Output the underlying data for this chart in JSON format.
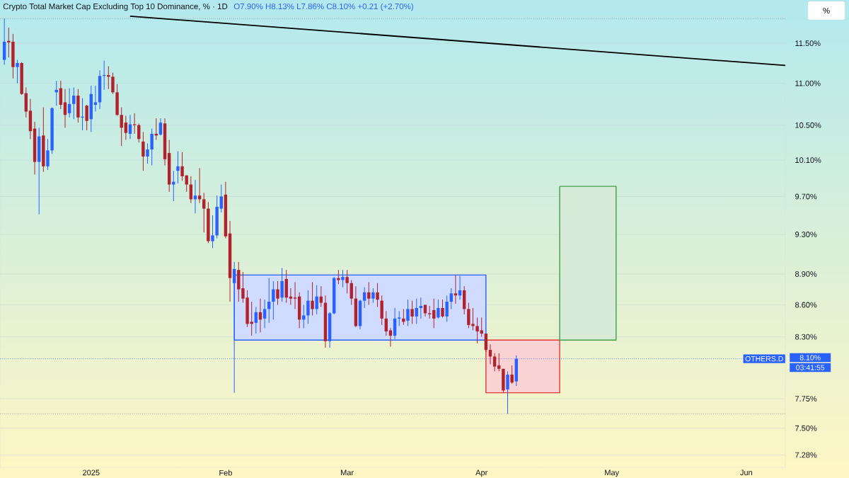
{
  "chart_data": {
    "type": "candlestick",
    "title": "Crypto Total Market Cap Excluding Top 10 Dominance, % · 1D",
    "subtitle": "O7.90% H8.13% L7.86% C8.10% +0.21 (+2.70%)",
    "ylabel": "%",
    "annotations": [
      "8.10%",
      "03:41:55"
    ],
    "x": [
      "2024-12-12",
      "2024-12-13",
      "2024-12-14",
      "2024-12-15",
      "2024-12-16",
      "2024-12-17",
      "2024-12-18",
      "2024-12-19",
      "2024-12-20",
      "2024-12-21",
      "2024-12-22",
      "2024-12-23",
      "2024-12-24",
      "2024-12-25",
      "2024-12-26",
      "2024-12-27",
      "2024-12-28",
      "2024-12-29",
      "2024-12-30",
      "2024-12-31",
      "2025-01-01",
      "2025-01-02",
      "2025-01-03",
      "2025-01-04",
      "2025-01-05",
      "2025-01-06",
      "2025-01-07",
      "2025-01-08",
      "2025-01-09",
      "2025-01-10",
      "2025-01-11",
      "2025-01-12",
      "2025-01-13",
      "2025-01-14",
      "2025-01-15",
      "2025-01-16",
      "2025-01-17",
      "2025-01-18",
      "2025-01-19",
      "2025-01-20",
      "2025-01-21",
      "2025-01-22",
      "2025-01-23",
      "2025-01-24",
      "2025-01-25",
      "2025-01-26",
      "2025-01-27",
      "2025-01-28",
      "2025-01-29",
      "2025-01-30",
      "2025-01-31",
      "2025-02-01",
      "2025-02-02",
      "2025-02-03",
      "2025-02-04",
      "2025-02-05",
      "2025-02-06",
      "2025-02-07",
      "2025-02-08",
      "2025-02-09",
      "2025-02-10",
      "2025-02-11",
      "2025-02-12",
      "2025-02-13",
      "2025-02-14",
      "2025-02-15",
      "2025-02-16",
      "2025-02-17",
      "2025-02-18",
      "2025-02-19",
      "2025-02-20",
      "2025-02-21",
      "2025-02-22",
      "2025-02-23",
      "2025-02-24",
      "2025-02-25",
      "2025-02-26",
      "2025-02-27",
      "2025-02-28",
      "2025-03-01",
      "2025-03-02",
      "2025-03-03",
      "2025-03-04",
      "2025-03-05",
      "2025-03-06",
      "2025-03-07",
      "2025-03-08",
      "2025-03-09",
      "2025-03-10",
      "2025-03-11",
      "2025-03-12",
      "2025-03-13",
      "2025-03-14",
      "2025-03-15",
      "2025-03-16",
      "2025-03-17",
      "2025-03-18",
      "2025-03-19",
      "2025-03-20",
      "2025-03-21",
      "2025-03-22",
      "2025-03-23",
      "2025-03-24",
      "2025-03-25",
      "2025-03-26",
      "2025-03-27",
      "2025-03-28",
      "2025-03-29",
      "2025-03-30",
      "2025-03-31",
      "2025-04-01",
      "2025-04-02",
      "2025-04-03",
      "2025-04-04",
      "2025-04-05",
      "2025-04-06",
      "2025-04-07",
      "2025-04-08",
      "2025-04-09"
    ],
    "ohlc": [
      [
        11.29,
        11.82,
        11.23,
        11.52
      ],
      [
        11.53,
        11.7,
        11.32,
        11.51
      ],
      [
        11.52,
        11.62,
        11.06,
        11.2
      ],
      [
        11.2,
        11.29,
        11.0,
        11.25
      ],
      [
        11.25,
        11.26,
        10.86,
        10.87
      ],
      [
        10.88,
        10.95,
        10.59,
        10.66
      ],
      [
        10.67,
        10.81,
        10.34,
        10.43
      ],
      [
        10.46,
        10.54,
        9.94,
        10.08
      ],
      [
        10.08,
        10.47,
        9.51,
        10.37
      ],
      [
        10.38,
        10.71,
        9.97,
        10.03
      ],
      [
        10.03,
        10.34,
        9.99,
        10.21
      ],
      [
        10.21,
        10.71,
        10.17,
        10.7
      ],
      [
        10.89,
        11.03,
        10.73,
        10.92
      ],
      [
        10.94,
        11.03,
        10.69,
        10.74
      ],
      [
        10.77,
        10.93,
        10.47,
        10.62
      ],
      [
        10.64,
        10.94,
        10.59,
        10.75
      ],
      [
        10.75,
        10.95,
        10.57,
        10.85
      ],
      [
        10.85,
        10.93,
        10.53,
        10.59
      ],
      [
        10.59,
        10.82,
        10.44,
        10.6
      ],
      [
        10.73,
        10.74,
        10.44,
        10.55
      ],
      [
        10.57,
        10.97,
        10.42,
        10.87
      ],
      [
        10.74,
        10.97,
        10.66,
        10.77
      ],
      [
        10.77,
        11.16,
        10.69,
        11.09
      ],
      [
        11.09,
        11.28,
        10.92,
        11.1
      ],
      [
        11.1,
        11.21,
        10.93,
        11.08
      ],
      [
        11.08,
        11.13,
        10.87,
        10.89
      ],
      [
        10.89,
        10.99,
        10.61,
        10.62
      ],
      [
        10.62,
        10.71,
        10.26,
        10.47
      ],
      [
        10.53,
        10.61,
        10.33,
        10.41
      ],
      [
        10.4,
        10.62,
        10.34,
        10.51
      ],
      [
        10.51,
        10.64,
        10.4,
        10.5
      ],
      [
        10.5,
        10.52,
        10.3,
        10.34
      ],
      [
        10.31,
        10.42,
        9.98,
        10.14
      ],
      [
        10.14,
        10.29,
        10.06,
        10.22
      ],
      [
        10.22,
        10.46,
        10.04,
        10.4
      ],
      [
        10.4,
        10.58,
        10.33,
        10.38
      ],
      [
        10.39,
        10.58,
        10.38,
        10.53
      ],
      [
        10.52,
        10.58,
        10.04,
        10.11
      ],
      [
        10.18,
        10.33,
        9.75,
        9.83
      ],
      [
        9.83,
        9.98,
        9.65,
        9.86
      ],
      [
        9.98,
        10.2,
        9.84,
        10.03
      ],
      [
        10.03,
        10.19,
        9.87,
        9.92
      ],
      [
        9.93,
        9.93,
        9.75,
        9.83
      ],
      [
        9.83,
        9.92,
        9.63,
        9.67
      ],
      [
        9.67,
        9.88,
        9.52,
        9.71
      ],
      [
        9.71,
        10.01,
        9.63,
        9.67
      ],
      [
        9.67,
        9.74,
        9.32,
        9.57
      ],
      [
        9.57,
        9.64,
        9.21,
        9.23
      ],
      [
        9.23,
        9.5,
        9.16,
        9.29
      ],
      [
        9.29,
        9.71,
        9.26,
        9.59
      ],
      [
        9.57,
        9.83,
        9.53,
        9.7
      ],
      [
        9.72,
        9.86,
        9.26,
        9.28
      ],
      [
        9.31,
        9.44,
        8.63,
        8.86
      ],
      [
        8.81,
        9.02,
        7.8,
        8.95
      ],
      [
        8.94,
        9.02,
        8.63,
        8.75
      ],
      [
        8.76,
        8.92,
        8.62,
        8.66
      ],
      [
        8.67,
        8.74,
        8.39,
        8.42
      ],
      [
        8.44,
        8.63,
        8.31,
        8.42
      ],
      [
        8.43,
        8.58,
        8.33,
        8.53
      ],
      [
        8.53,
        8.66,
        8.34,
        8.46
      ],
      [
        8.47,
        8.65,
        8.38,
        8.56
      ],
      [
        8.56,
        8.86,
        8.43,
        8.63
      ],
      [
        8.63,
        8.83,
        8.46,
        8.75
      ],
      [
        8.75,
        8.83,
        8.6,
        8.66
      ],
      [
        8.67,
        8.96,
        8.63,
        8.83
      ],
      [
        8.85,
        8.94,
        8.62,
        8.67
      ],
      [
        8.68,
        8.76,
        8.6,
        8.66
      ],
      [
        8.67,
        8.82,
        8.56,
        8.66
      ],
      [
        8.68,
        8.72,
        8.38,
        8.46
      ],
      [
        8.46,
        8.6,
        8.38,
        8.5
      ],
      [
        8.5,
        8.74,
        8.42,
        8.64
      ],
      [
        8.64,
        8.82,
        8.5,
        8.56
      ],
      [
        8.56,
        8.79,
        8.51,
        8.68
      ],
      [
        8.68,
        8.78,
        8.58,
        8.62
      ],
      [
        8.62,
        8.69,
        8.2,
        8.26
      ],
      [
        8.26,
        8.53,
        8.2,
        8.52
      ],
      [
        8.52,
        8.87,
        8.51,
        8.86
      ],
      [
        8.86,
        8.94,
        8.8,
        8.84
      ],
      [
        8.84,
        8.94,
        8.77,
        8.87
      ],
      [
        8.87,
        8.94,
        8.71,
        8.81
      ],
      [
        8.81,
        8.84,
        8.6,
        8.66
      ],
      [
        8.66,
        8.78,
        8.39,
        8.4
      ],
      [
        8.4,
        8.65,
        8.37,
        8.64
      ],
      [
        8.64,
        8.77,
        8.57,
        8.72
      ],
      [
        8.72,
        8.82,
        8.6,
        8.66
      ],
      [
        8.66,
        8.76,
        8.62,
        8.72
      ],
      [
        8.72,
        8.81,
        8.58,
        8.65
      ],
      [
        8.64,
        8.69,
        8.41,
        8.47
      ],
      [
        8.47,
        8.54,
        8.31,
        8.35
      ],
      [
        8.36,
        8.38,
        8.21,
        8.31
      ],
      [
        8.31,
        8.57,
        8.28,
        8.47
      ],
      [
        8.47,
        8.54,
        8.4,
        8.48
      ],
      [
        8.47,
        8.56,
        8.41,
        8.44
      ],
      [
        8.45,
        8.65,
        8.4,
        8.56
      ],
      [
        8.56,
        8.64,
        8.42,
        8.49
      ],
      [
        8.49,
        8.66,
        8.42,
        8.57
      ],
      [
        8.57,
        8.67,
        8.47,
        8.59
      ],
      [
        8.6,
        8.6,
        8.49,
        8.52
      ],
      [
        8.52,
        8.59,
        8.47,
        8.51
      ],
      [
        8.55,
        8.66,
        8.38,
        8.47
      ],
      [
        8.48,
        8.65,
        8.47,
        8.57
      ],
      [
        8.57,
        8.65,
        8.48,
        8.49
      ],
      [
        8.49,
        8.69,
        8.44,
        8.63
      ],
      [
        8.63,
        8.76,
        8.56,
        8.71
      ],
      [
        8.71,
        8.89,
        8.61,
        8.69
      ],
      [
        8.69,
        8.88,
        8.65,
        8.74
      ],
      [
        8.74,
        8.78,
        8.51,
        8.56
      ],
      [
        8.56,
        8.62,
        8.38,
        8.41
      ],
      [
        8.42,
        8.57,
        8.36,
        8.4
      ],
      [
        8.4,
        8.48,
        8.24,
        8.35
      ],
      [
        8.36,
        8.48,
        8.3,
        8.33
      ],
      [
        8.33,
        8.33,
        8.16,
        8.18
      ],
      [
        8.18,
        8.23,
        8.05,
        8.12
      ],
      [
        8.12,
        8.15,
        7.99,
        8.03
      ],
      [
        8.04,
        8.15,
        7.99,
        8.01
      ],
      [
        8.01,
        8.01,
        7.8,
        7.82
      ],
      [
        7.83,
        7.99,
        7.62,
        7.96
      ],
      [
        7.96,
        8.04,
        7.88,
        7.89
      ],
      [
        7.9,
        8.13,
        7.86,
        8.1
      ]
    ],
    "colors": [
      "#2962ff",
      "#b2222c",
      "#b2222c",
      "#2962ff",
      "#b2222c",
      "#b2222c",
      "#b2222c",
      "#b2222c",
      "#2962ff",
      "#b2222c",
      "#2962ff",
      "#2962ff",
      "#2962ff",
      "#b2222c",
      "#b2222c",
      "#2962ff",
      "#2962ff",
      "#b2222c",
      "#2962ff",
      "#b2222c",
      "#2962ff",
      "#2962ff",
      "#2962ff",
      "#2962ff",
      "#b2222c",
      "#b2222c",
      "#b2222c",
      "#b2222c",
      "#b2222c",
      "#2962ff",
      "#b2222c",
      "#b2222c",
      "#b2222c",
      "#2962ff",
      "#2962ff",
      "#b2222c",
      "#2962ff",
      "#b2222c",
      "#b2222c",
      "#2962ff",
      "#2962ff",
      "#b2222c",
      "#b2222c",
      "#b2222c",
      "#2962ff",
      "#b2222c",
      "#b2222c",
      "#b2222c",
      "#2962ff",
      "#2962ff",
      "#2962ff",
      "#b2222c",
      "#b2222c",
      "#2962ff",
      "#b2222c",
      "#b2222c",
      "#b2222c",
      "#b2222c",
      "#2962ff",
      "#b2222c",
      "#2962ff",
      "#2962ff",
      "#2962ff",
      "#b2222c",
      "#2962ff",
      "#b2222c",
      "#b2222c",
      "#b2222c",
      "#b2222c",
      "#2962ff",
      "#2962ff",
      "#b2222c",
      "#2962ff",
      "#b2222c",
      "#b2222c",
      "#2962ff",
      "#2962ff",
      "#b2222c",
      "#2962ff",
      "#b2222c",
      "#b2222c",
      "#b2222c",
      "#2962ff",
      "#2962ff",
      "#b2222c",
      "#2962ff",
      "#b2222c",
      "#b2222c",
      "#b2222c",
      "#b2222c",
      "#2962ff",
      "#2962ff",
      "#b2222c",
      "#2962ff",
      "#b2222c",
      "#2962ff",
      "#2962ff",
      "#b2222c",
      "#b2222c",
      "#b2222c",
      "#2962ff",
      "#b2222c",
      "#2962ff",
      "#2962ff",
      "#b2222c",
      "#2962ff",
      "#b2222c",
      "#b2222c",
      "#b2222c",
      "#b2222c",
      "#b2222c",
      "#b2222c",
      "#b2222c",
      "#b2222c",
      "#b2222c",
      "#b2222c",
      "#2962ff",
      "#b2222c",
      "#2962ff"
    ],
    "series": [
      {
        "type": "area",
        "x": [
          "2025-02-03",
          "2025-04-02",
          "2025-04-02",
          "2025-02-03",
          "2025-02-03"
        ],
        "values": [
          8.89,
          8.89,
          8.27,
          8.27,
          8.89
        ],
        "color": "#2962ff"
      },
      {
        "type": "area",
        "x": [
          "2025-04-02",
          "2025-04-19",
          "2025-04-19",
          "2025-04-02",
          "2025-04-02"
        ],
        "values": [
          8.27,
          8.27,
          7.8,
          7.8,
          8.27
        ],
        "color": "#e53935"
      },
      {
        "type": "area",
        "x": [
          "2025-04-19",
          "2025-05-02",
          "2025-05-02",
          "2025-04-19",
          "2025-04-19"
        ],
        "values": [
          9.81,
          9.81,
          8.27,
          8.27,
          9.81
        ],
        "color": "#43a047"
      },
      {
        "type": "line",
        "x": [
          "2025-01-10",
          "2025-06-10"
        ],
        "values": [
          11.85,
          11.22
        ],
        "color": "#000000"
      }
    ],
    "ref_lines": [
      {
        "axis": "y",
        "value": 8.1,
        "label": "OTHERS.D",
        "color": "#2962ff",
        "line_style": "dotted"
      },
      {
        "axis": "y",
        "value": 7.62,
        "color": "#787b86",
        "line_style": "dotted"
      },
      {
        "axis": "y",
        "value": 11.82,
        "color": "#787b86",
        "line_style": "dotted"
      }
    ],
    "log": "y",
    "grid": "y",
    "xlim": [
      "2024-12-11",
      "2025-06-10"
    ],
    "xticks": [
      {
        "value": "2025-01-01",
        "label": "2025"
      },
      {
        "value": "2025-02-01",
        "label": "Feb"
      },
      {
        "value": "2025-03-01",
        "label": "Mar"
      },
      {
        "value": "2025-04-01",
        "label": "Apr"
      },
      {
        "value": "2025-05-01",
        "label": "May"
      },
      {
        "value": "2025-06-01",
        "label": "Jun"
      }
    ],
    "ylim": [
      7.18,
      11.85
    ],
    "yticks": [
      {
        "value": 7.28,
        "label": "7.28%"
      },
      {
        "value": 7.5,
        "label": "7.50%"
      },
      {
        "value": 7.75,
        "label": "7.75%"
      },
      {
        "value": 8.3,
        "label": "8.30%"
      },
      {
        "value": 8.6,
        "label": "8.60%"
      },
      {
        "value": 8.9,
        "label": "8.90%"
      },
      {
        "value": 9.3,
        "label": "9.30%"
      },
      {
        "value": 9.7,
        "label": "9.70%"
      },
      {
        "value": 10.1,
        "label": "10.10%"
      },
      {
        "value": 10.5,
        "label": "10.50%"
      },
      {
        "value": 11.0,
        "label": "11.00%"
      },
      {
        "value": 11.5,
        "label": "11.50%"
      }
    ]
  }
}
